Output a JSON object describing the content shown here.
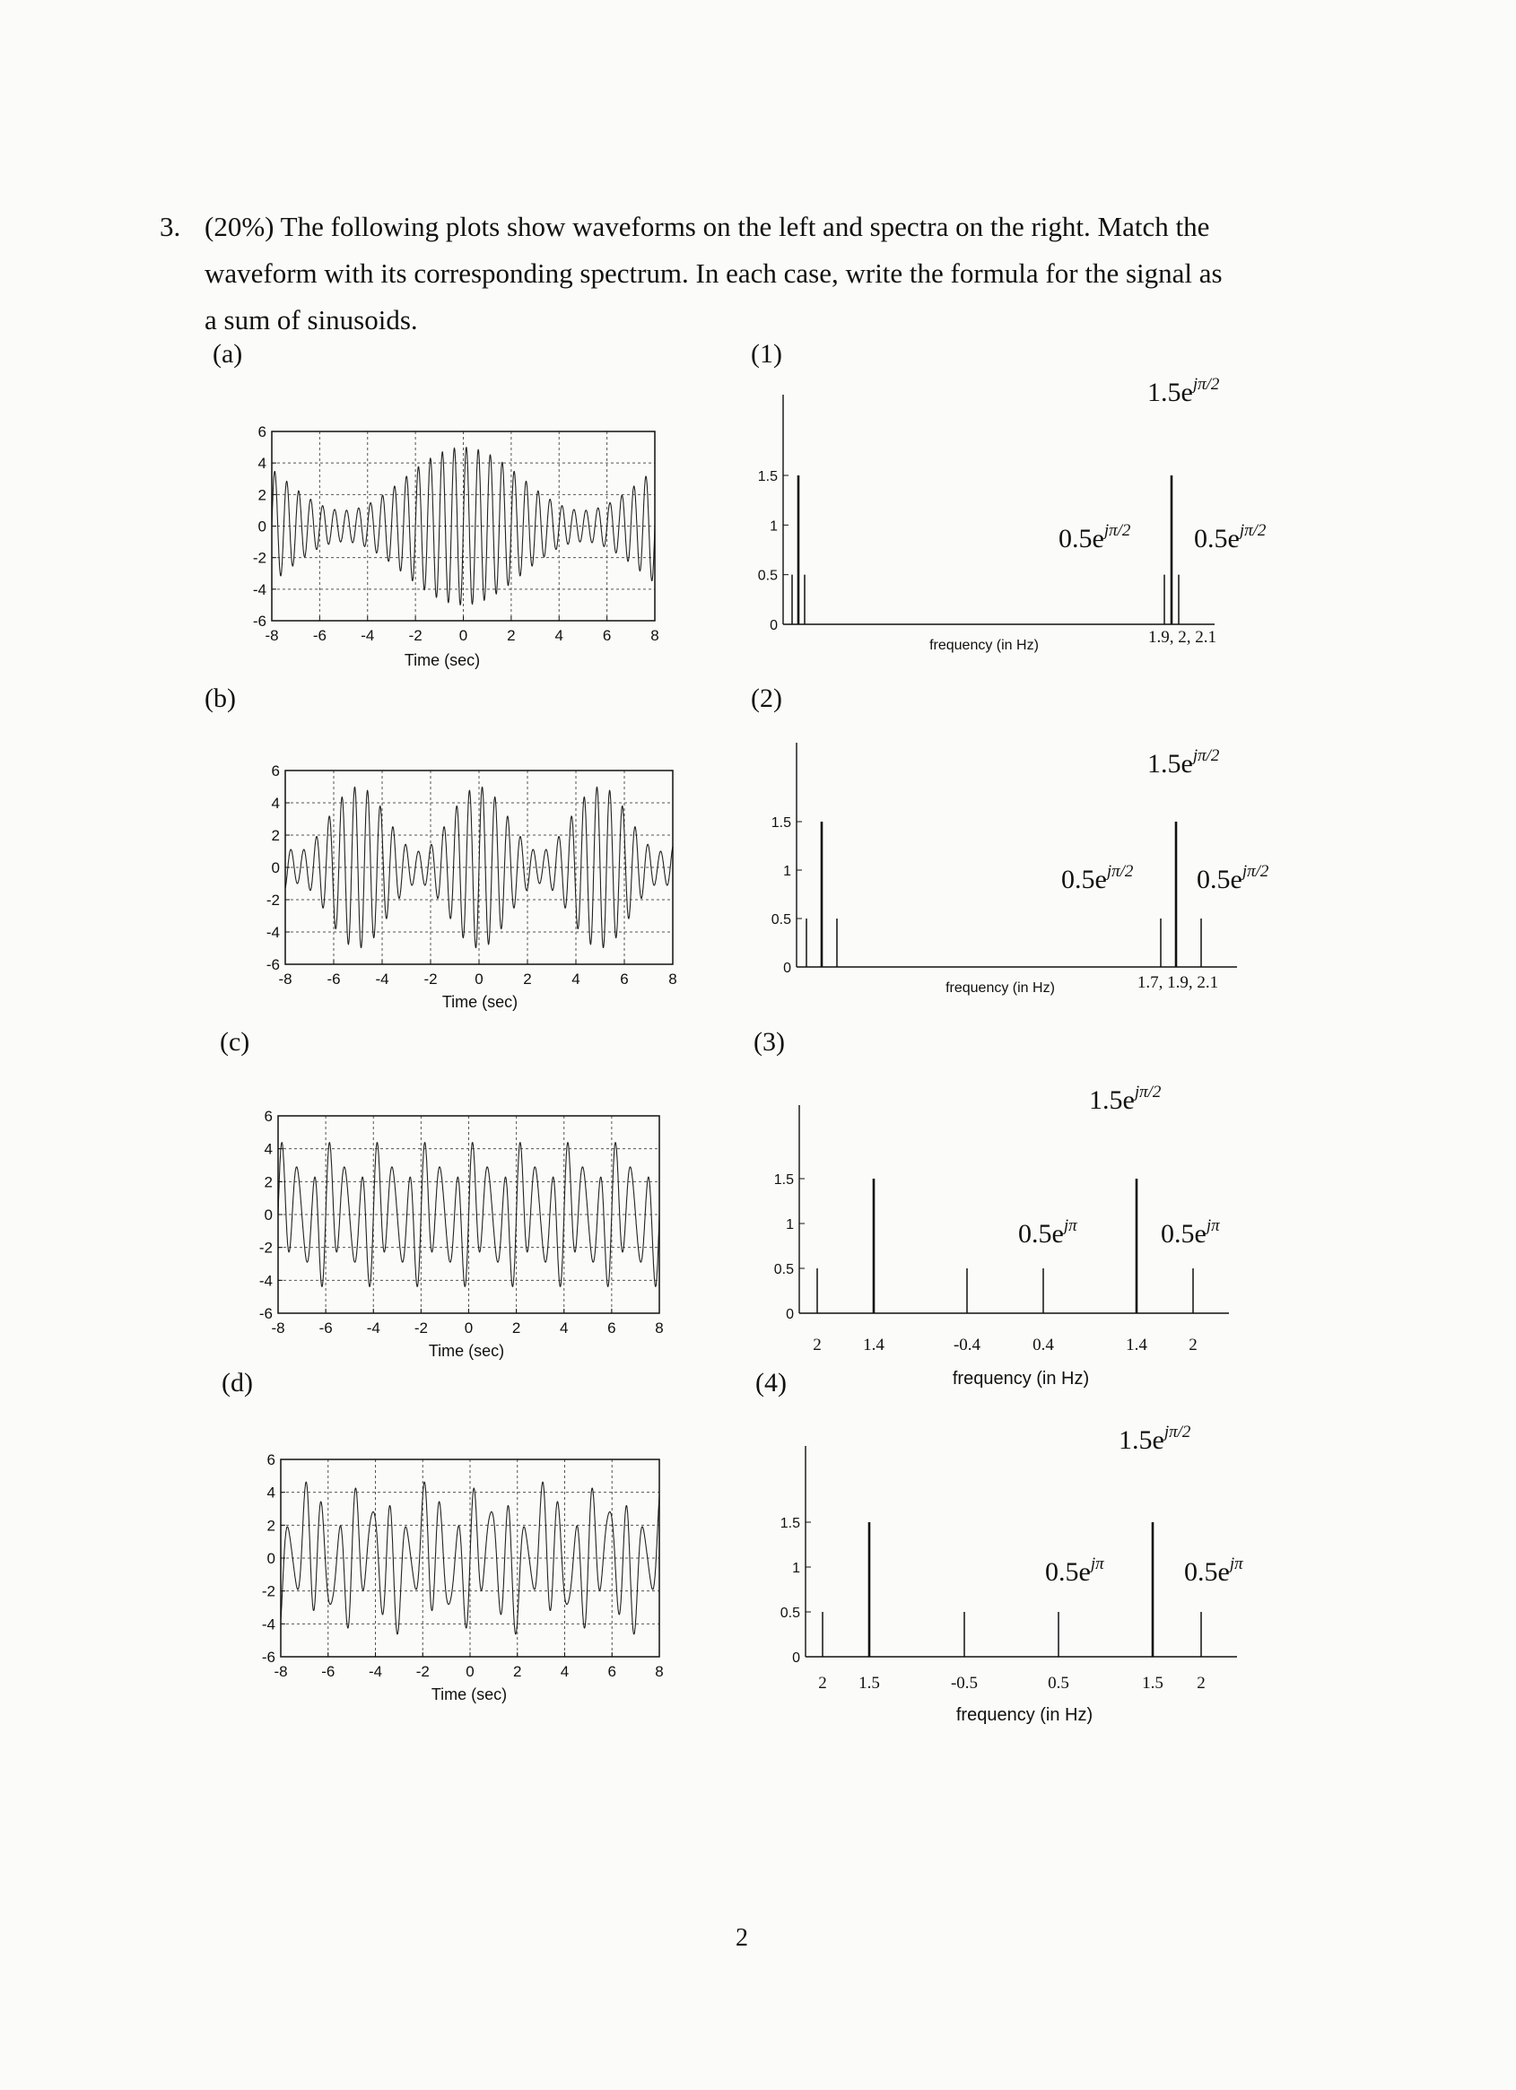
{
  "question": {
    "number": "3.",
    "lines": [
      "(20%) The following plots show waveforms on the left and spectra on the right. Match the",
      "waveform with its corresponding spectrum. In each case, write the formula for the signal as",
      "a sum of sinusoids."
    ]
  },
  "left_labels": [
    "(a)",
    "(b)",
    "(c)",
    "(d)"
  ],
  "right_labels": [
    "(1)",
    "(2)",
    "(3)",
    "(4)"
  ],
  "page_number": "2",
  "chart_data": [
    {
      "type": "line",
      "id": "a",
      "xlabel": "Time (sec)",
      "xlim": [
        -8,
        8
      ],
      "ylim": [
        -6,
        6
      ],
      "xticks": [
        "-8",
        "-6",
        "-4",
        "-2",
        "0",
        "2",
        "4",
        "6",
        "8"
      ],
      "yticks": [
        "6",
        "4",
        "2",
        "0",
        "-2",
        "-4",
        "-6"
      ],
      "grid": true,
      "series": [
        {
          "components": [
            {
              "amplitude": 3,
              "frequency": 2
            },
            {
              "amplitude": 1,
              "frequency": 1.9
            },
            {
              "amplitude": 1,
              "frequency": 2.1
            }
          ]
        }
      ]
    },
    {
      "type": "line",
      "id": "b",
      "xlabel": "Time (sec)",
      "xlim": [
        -8,
        8
      ],
      "ylim": [
        -6,
        6
      ],
      "xticks": [
        "-8",
        "-6",
        "-4",
        "-2",
        "0",
        "2",
        "4",
        "6",
        "8"
      ],
      "yticks": [
        "6",
        "4",
        "2",
        "0",
        "-2",
        "-4",
        "-6"
      ],
      "grid": true,
      "series": [
        {
          "components": [
            {
              "amplitude": 3,
              "frequency": 1.9
            },
            {
              "amplitude": 1,
              "frequency": 1.7
            },
            {
              "amplitude": 1,
              "frequency": 2.1
            }
          ]
        }
      ]
    },
    {
      "type": "line",
      "id": "c",
      "xlabel": "Time (sec)",
      "xlim": [
        -8,
        8
      ],
      "ylim": [
        -6,
        6
      ],
      "xticks": [
        "-8",
        "-6",
        "-4",
        "-2",
        "0",
        "2",
        "4",
        "6",
        "8"
      ],
      "yticks": [
        "6",
        "4",
        "2",
        "0",
        "-2",
        "-4",
        "-6"
      ],
      "grid": true,
      "series": [
        {
          "components": [
            {
              "amplitude": 3,
              "frequency": 1.5
            },
            {
              "amplitude": 1,
              "frequency": 0.5
            },
            {
              "amplitude": 1,
              "frequency": 2
            }
          ]
        }
      ]
    },
    {
      "type": "line",
      "id": "d",
      "xlabel": "Time (sec)",
      "xlim": [
        -8,
        8
      ],
      "ylim": [
        -6,
        6
      ],
      "xticks": [
        "-8",
        "-6",
        "-4",
        "-2",
        "0",
        "2",
        "4",
        "6",
        "8"
      ],
      "yticks": [
        "6",
        "4",
        "2",
        "0",
        "-2",
        "-4",
        "-6"
      ],
      "grid": true,
      "series": [
        {
          "components": [
            {
              "amplitude": 3,
              "frequency": 1.4
            },
            {
              "amplitude": 1,
              "frequency": 0.4
            },
            {
              "amplitude": 1,
              "frequency": 2
            }
          ]
        }
      ]
    },
    {
      "type": "stem",
      "id": "1",
      "xlabel": "frequency (in Hz)",
      "ylim": [
        0,
        1.5
      ],
      "yticks": [
        "1.5",
        "1",
        "0.5",
        "0"
      ],
      "xtick_text": "1.9, 2, 2.1",
      "stems": [
        {
          "frequency": -2.1,
          "value": 0.5
        },
        {
          "frequency": -2,
          "value": 1.5
        },
        {
          "frequency": -1.9,
          "value": 0.5
        },
        {
          "frequency": 1.9,
          "value": 0.5
        },
        {
          "frequency": 2,
          "value": 1.5
        },
        {
          "frequency": 2.1,
          "value": 0.5
        }
      ],
      "annotations": [
        {
          "base": "0.5e",
          "exp": "jπ/2"
        },
        {
          "base": "1.5e",
          "exp": "jπ/2"
        },
        {
          "base": "0.5e",
          "exp": "jπ/2"
        }
      ]
    },
    {
      "type": "stem",
      "id": "2",
      "xlabel": "frequency (in Hz)",
      "ylim": [
        0,
        1.5
      ],
      "yticks": [
        "1.5",
        "1",
        "0.5",
        "0"
      ],
      "xtick_text": "1.7, 1.9, 2.1",
      "stems": [
        {
          "frequency": -2.1,
          "value": 0.5
        },
        {
          "frequency": -1.9,
          "value": 1.5
        },
        {
          "frequency": -1.7,
          "value": 0.5
        },
        {
          "frequency": 1.7,
          "value": 0.5
        },
        {
          "frequency": 1.9,
          "value": 1.5
        },
        {
          "frequency": 2.1,
          "value": 0.5
        }
      ],
      "annotations": [
        {
          "base": "0.5e",
          "exp": "jπ/2"
        },
        {
          "base": "1.5e",
          "exp": "jπ/2"
        },
        {
          "base": "0.5e",
          "exp": "jπ/2"
        }
      ]
    },
    {
      "type": "stem",
      "id": "3",
      "xlabel": "frequency (in Hz)",
      "ylim": [
        0,
        1.5
      ],
      "yticks": [
        "1.5",
        "1",
        "0.5",
        "0"
      ],
      "xticks": [
        "2",
        "1.4",
        "-0.4",
        "0.4",
        "1.4",
        "2"
      ],
      "stems": [
        {
          "frequency": -2,
          "value": 0.5
        },
        {
          "frequency": -1.4,
          "value": 1.5
        },
        {
          "frequency": -0.4,
          "value": 0.5
        },
        {
          "frequency": 0.4,
          "value": 0.5
        },
        {
          "frequency": 1.4,
          "value": 1.5
        },
        {
          "frequency": 2,
          "value": 0.5
        }
      ],
      "annotations": [
        {
          "base": "1.5e",
          "exp": "jπ/2"
        },
        {
          "base": "0.5e",
          "exp": "jπ"
        },
        {
          "base": "0.5e",
          "exp": "jπ"
        }
      ]
    },
    {
      "type": "stem",
      "id": "4",
      "xlabel": "frequency (in Hz)",
      "ylim": [
        0,
        1.5
      ],
      "yticks": [
        "1.5",
        "1",
        "0.5",
        "0"
      ],
      "xticks": [
        "2",
        "1.5",
        "-0.5",
        "0.5",
        "1.5",
        "2"
      ],
      "stems": [
        {
          "frequency": -2,
          "value": 0.5
        },
        {
          "frequency": -1.5,
          "value": 1.5
        },
        {
          "frequency": -0.5,
          "value": 0.5
        },
        {
          "frequency": 0.5,
          "value": 0.5
        },
        {
          "frequency": 1.5,
          "value": 1.5
        },
        {
          "frequency": 2,
          "value": 0.5
        }
      ],
      "annotations": [
        {
          "base": "1.5e",
          "exp": "jπ/2"
        },
        {
          "base": "0.5e",
          "exp": "jπ"
        },
        {
          "base": "0.5e",
          "exp": "jπ"
        }
      ]
    }
  ]
}
